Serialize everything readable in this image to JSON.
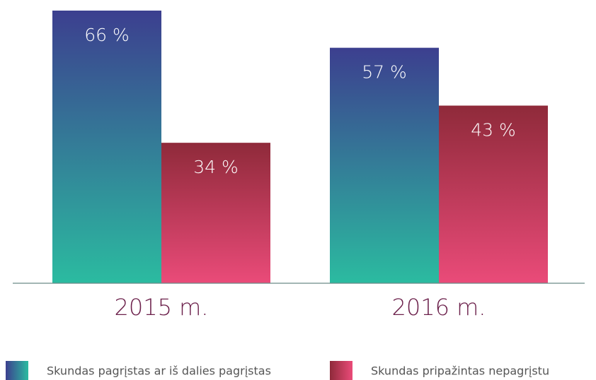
{
  "chart_data": {
    "type": "bar",
    "categories": [
      "2015 m.",
      "2016 m."
    ],
    "series": [
      {
        "name": "Skundas pagrįstas ar iš dalies pagrįstas",
        "color": [
          "#3c3f8f",
          "#2bbba0"
        ],
        "values": [
          66,
          57
        ],
        "value_labels": [
          "66 %",
          "57 %"
        ]
      },
      {
        "name": "Skundas pripažintas nepagrįstu",
        "color": [
          "#8f2a3a",
          "#ea4b79"
        ],
        "values": [
          34,
          43
        ],
        "value_labels": [
          "34 %",
          "43 %"
        ]
      }
    ]
  }
}
